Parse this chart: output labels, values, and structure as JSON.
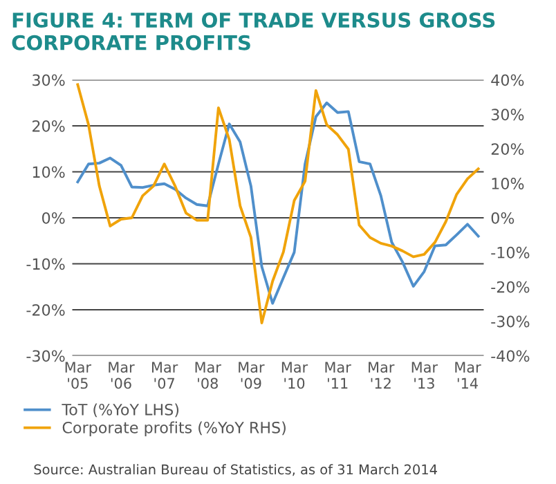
{
  "chart_data": {
    "type": "line",
    "title": "FIGURE 4: TERM OF TRADE VERSUS GROSS CORPORATE PROFITS",
    "categories": [
      "Mar\n'05",
      null,
      null,
      null,
      "Mar\n'06",
      null,
      null,
      null,
      "Mar\n'07",
      null,
      null,
      null,
      "Mar\n'08",
      null,
      null,
      null,
      "Mar\n'09",
      null,
      null,
      null,
      "Mar\n'10",
      null,
      null,
      null,
      "Mar\n'11",
      null,
      null,
      null,
      "Mar\n'12",
      null,
      null,
      null,
      "Mar\n'13",
      null,
      null,
      null,
      "Mar\n'14",
      null
    ],
    "series": [
      {
        "name": "ToT (%YoY LHS)",
        "color": "#4f8fcb",
        "values": [
          7.8,
          11.7,
          11.9,
          13,
          11.4,
          6.7,
          6.6,
          7.1,
          7.4,
          6.2,
          4.3,
          2.9,
          2.6,
          11.7,
          20.4,
          16.5,
          6.9,
          -10.6,
          -18.6,
          -13,
          -7.5,
          11.7,
          22,
          25,
          22.9,
          23.1,
          12.2,
          11.7,
          4.8,
          -5.3,
          -9.6,
          -14.9,
          -11.7,
          -6.1,
          -5.9,
          -3.7,
          -1.4,
          -4
        ]
      },
      {
        "name": "Corporate profits (%YoY RHS)",
        "color": "#f0a30a",
        "axis": "y2",
        "values": [
          38.6,
          27,
          9.2,
          -2.4,
          -0.4,
          0,
          6.4,
          9.2,
          15.6,
          9.2,
          1.4,
          -0.7,
          -0.7,
          31.9,
          22.7,
          3.5,
          -5.7,
          -30.5,
          -18.4,
          -9.9,
          5,
          10.6,
          36.9,
          27,
          24.1,
          19.9,
          -2.1,
          -5.7,
          -7.4,
          -8.2,
          -9.6,
          -11.3,
          -10.6,
          -7.1,
          -1.1,
          6.8,
          11.3,
          14.2
        ]
      }
    ],
    "ylim": [
      -30,
      30
    ],
    "yticks": [
      {
        "value": -30,
        "label": "-30%"
      },
      {
        "value": -20,
        "label": "-20%"
      },
      {
        "value": -10,
        "label": "-10%"
      },
      {
        "value": 0,
        "label": "0%"
      },
      {
        "value": 10,
        "label": "10%"
      },
      {
        "value": 20,
        "label": "20%"
      },
      {
        "value": 30,
        "label": "30%"
      }
    ],
    "y2lim": [
      -40,
      40
    ],
    "y2ticks": [
      {
        "value": -40,
        "label": "-40%"
      },
      {
        "value": -30,
        "label": "-30%"
      },
      {
        "value": -20,
        "label": "-20%"
      },
      {
        "value": -10,
        "label": "-10%"
      },
      {
        "value": 0,
        "label": "0%"
      },
      {
        "value": 10,
        "label": "10%"
      },
      {
        "value": 20,
        "label": "20%"
      },
      {
        "value": 30,
        "label": "30%"
      },
      {
        "value": 40,
        "label": "40%"
      }
    ],
    "grid": "y",
    "legend": "bottom",
    "marker": "none",
    "line_style": "solid",
    "annotations": [
      "Source: Australian Bureau of Statistics, as of 31 March 2014"
    ]
  }
}
